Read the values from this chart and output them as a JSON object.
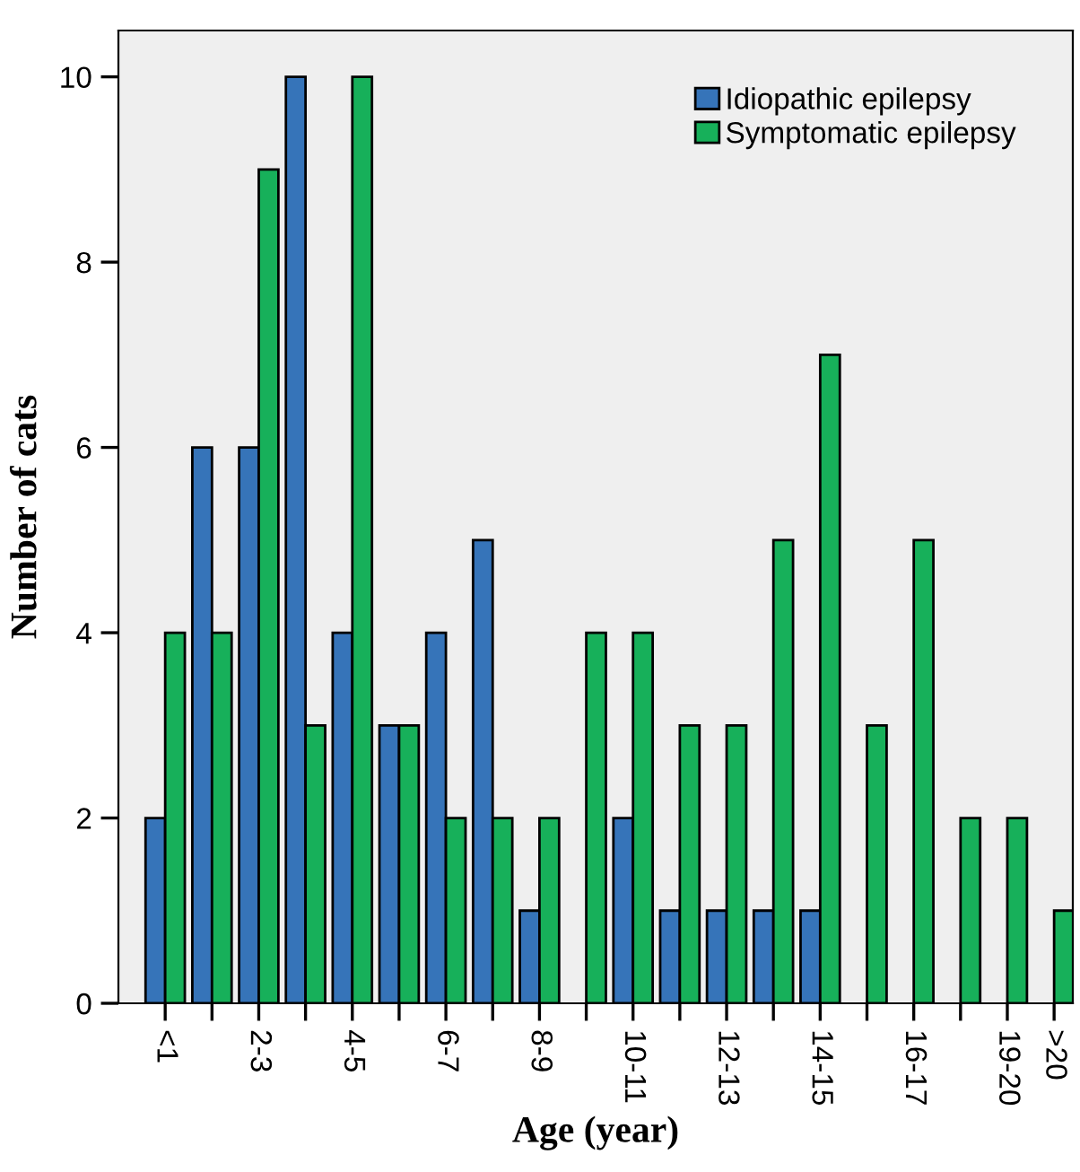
{
  "chart_data": {
    "type": "bar",
    "xlabel": "Age (year)",
    "ylabel": "Number of cats",
    "categories": [
      "<1",
      null,
      "2-3",
      null,
      "4-5",
      null,
      "6-7",
      null,
      "8-9",
      null,
      "10-11",
      null,
      "12-13",
      null,
      "14-15",
      null,
      "16-17",
      null,
      "19-20",
      ">20"
    ],
    "series": [
      {
        "name": "Idiopathic epilepsy",
        "color": "#3674b9",
        "values": [
          2,
          6,
          6,
          10,
          4,
          3,
          4,
          5,
          1,
          0,
          2,
          1,
          1,
          1,
          1,
          0,
          0,
          0,
          0,
          0
        ]
      },
      {
        "name": "Symptomatic epilepsy",
        "color": "#17b05a",
        "values": [
          4,
          4,
          9,
          3,
          10,
          3,
          2,
          2,
          2,
          4,
          4,
          3,
          3,
          5,
          7,
          3,
          5,
          2,
          2,
          1
        ]
      }
    ],
    "ylim": [
      0,
      10.5
    ],
    "yticks": [
      0,
      2,
      4,
      6,
      8,
      10
    ],
    "grid": false,
    "legend": "top right"
  }
}
